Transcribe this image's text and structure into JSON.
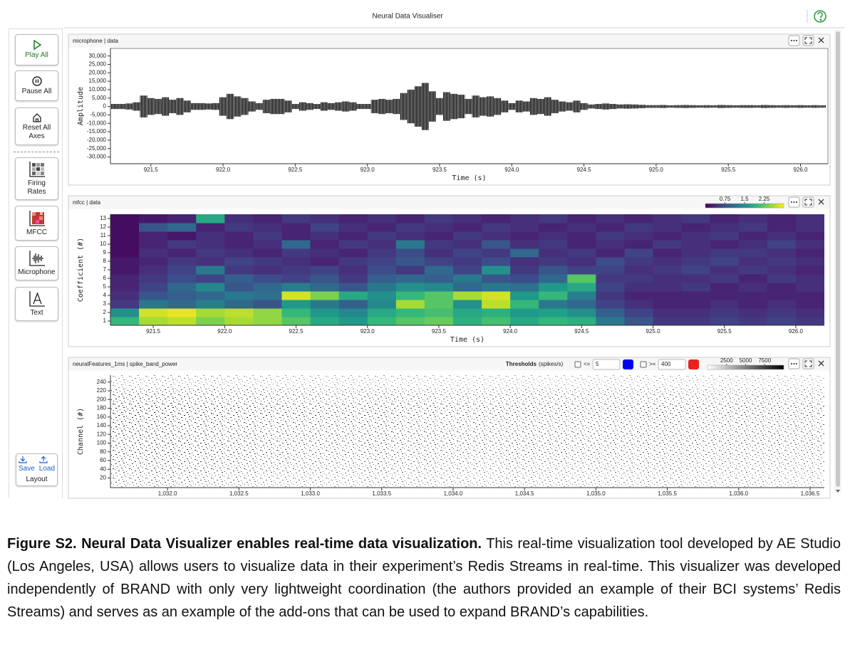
{
  "header": {
    "title": "Neural Data Visualiser"
  },
  "sidebar": {
    "buttons": [
      "Play All",
      "Pause All",
      "Reset All Axes",
      "Firing Rates",
      "MFCC",
      "Microphone",
      "Text"
    ],
    "save": "Save",
    "load": "Load",
    "layout": "Layout"
  },
  "panels": [
    {
      "title": "microphone | data",
      "chart_data": {
        "type": "envelope",
        "x_label": "Time (s)",
        "y_label": "Amplitude",
        "color": "#000000",
        "xlim": [
          921.22,
          926.19
        ],
        "xticks": [
          921.5,
          {
            "value": 922,
            "label": "922.0"
          },
          922.5,
          {
            "value": 923,
            "label": "923.0"
          },
          923.5,
          {
            "value": 924,
            "label": "924.0"
          },
          924.5,
          {
            "value": 925,
            "label": "925.0"
          },
          925.5,
          {
            "value": 926,
            "label": "926.0"
          }
        ],
        "ylim": [
          -34000,
          34500
        ],
        "yticks": [
          {
            "value": 30000,
            "label": "30,000"
          },
          {
            "value": 25000,
            "label": "25,000"
          },
          {
            "value": 20000,
            "label": "20,000"
          },
          {
            "value": 15000,
            "label": "15,000"
          },
          {
            "value": 10000,
            "label": "10,000"
          },
          {
            "value": 5000,
            "label": "5,000"
          },
          0,
          {
            "value": -5000,
            "label": "-5,000"
          },
          {
            "value": -10000,
            "label": "-10,000"
          },
          {
            "value": -15000,
            "label": "-15,000"
          },
          {
            "value": -20000,
            "label": "-20,000"
          },
          {
            "value": -25000,
            "label": "-25,000"
          },
          {
            "value": -30000,
            "label": "-30,000"
          }
        ],
        "x": [
          921.25,
          921.3,
          921.35,
          921.4,
          921.45,
          921.5,
          921.55,
          921.6,
          921.65,
          921.7,
          921.75,
          921.8,
          921.85,
          921.9,
          921.95,
          922,
          922.05,
          922.1,
          922.15,
          922.2,
          922.25,
          922.3,
          922.35,
          922.4,
          922.45,
          922.5,
          922.55,
          922.6,
          922.65,
          922.7,
          922.75,
          922.8,
          922.85,
          922.9,
          922.95,
          923,
          923.05,
          923.1,
          923.15,
          923.2,
          923.25,
          923.3,
          923.35,
          923.4,
          923.45,
          923.5,
          923.55,
          923.6,
          923.65,
          923.7,
          923.75,
          923.8,
          923.85,
          923.9,
          923.95,
          924,
          924.05,
          924.1,
          924.15,
          924.2,
          924.25,
          924.3,
          924.35,
          924.4,
          924.45,
          924.5,
          924.55,
          924.6,
          924.65,
          924.7,
          924.75,
          924.8,
          924.85,
          924.9,
          924.95,
          925,
          925.05,
          925.1,
          925.15,
          925.2,
          925.25,
          925.3,
          925.35,
          925.4,
          925.45,
          925.5,
          925.55,
          925.6,
          925.65,
          925.7,
          925.75,
          925.8,
          925.85,
          925.9,
          925.95,
          926,
          926.05,
          926.1,
          926.15
        ],
        "values": [
          1500,
          1500,
          1800,
          2500,
          6500,
          5000,
          4500,
          5500,
          4000,
          5000,
          3500,
          2000,
          2000,
          1800,
          2000,
          5500,
          7500,
          6000,
          5000,
          3000,
          2000,
          4000,
          4500,
          4500,
          3500,
          1500,
          2500,
          2000,
          1500,
          2500,
          2000,
          2500,
          3000,
          2500,
          1500,
          1500,
          4000,
          4500,
          4000,
          4500,
          8000,
          10000,
          12000,
          14000,
          9000,
          5000,
          8500,
          7500,
          7000,
          4500,
          6500,
          5500,
          6000,
          5000,
          3500,
          2000,
          3500,
          3000,
          5000,
          4500,
          5500,
          4000,
          3000,
          2500,
          3500,
          2000,
          1200,
          1500,
          1800,
          1500,
          1200,
          1300,
          1200,
          1000,
          800,
          800,
          900,
          700,
          800,
          900,
          800,
          700,
          800,
          700,
          900,
          800,
          700,
          800,
          800,
          700,
          900,
          800,
          700,
          800,
          700,
          800,
          700,
          800,
          700
        ]
      }
    },
    {
      "title": "mfcc | data",
      "chart_data": {
        "type": "heatmap",
        "x_label": "Time (s)",
        "y_label": "Coefficient (#)",
        "colormap": "viridis",
        "clim": [
          0,
          3
        ],
        "cticks": [
          0.75,
          1.5,
          2.25
        ],
        "xlim": [
          921.2,
          926.2
        ],
        "xticks": [
          921.5,
          {
            "value": 922,
            "label": "922.0"
          },
          922.5,
          {
            "value": 923,
            "label": "923.0"
          },
          923.5,
          {
            "value": 924,
            "label": "924.0"
          },
          924.5,
          {
            "value": 925,
            "label": "925.0"
          },
          925.5,
          {
            "value": 926,
            "label": "926.0"
          }
        ],
        "ylim": [
          0.5,
          13.5
        ],
        "yticks": [
          1,
          2,
          3,
          4,
          5,
          6,
          7,
          8,
          9,
          10,
          11,
          12,
          13
        ],
        "x_bins": [
          921.2,
          921.4,
          921.6,
          921.8,
          922,
          922.2,
          922.4,
          922.6,
          922.8,
          923,
          923.2,
          923.4,
          923.6,
          923.8,
          924,
          924.2,
          924.4,
          924.6,
          924.8,
          925,
          925.2,
          925.4,
          925.6,
          925.8,
          926,
          926.2
        ],
        "y_bins": [
          0.5,
          1.5,
          2.5,
          3.5,
          4.5,
          5.5,
          6.5,
          7.5,
          8.5,
          9.5,
          10.5,
          11.5,
          12.5,
          13.5
        ],
        "values": [
          [
            2.0,
            2.6,
            2.7,
            2.4,
            2.6,
            2.5,
            2.2,
            1.8,
            1.6,
            2.0,
            2.2,
            2.3,
            1.9,
            2.1,
            1.8,
            2.0,
            1.9,
            1.2,
            0.8,
            0.5,
            0.5,
            0.6,
            0.5,
            0.6,
            0.5
          ],
          [
            1.5,
            2.8,
            2.9,
            2.6,
            2.7,
            2.5,
            2.0,
            1.6,
            1.4,
            1.8,
            2.0,
            2.1,
            1.8,
            1.9,
            1.6,
            1.7,
            1.5,
            0.9,
            0.6,
            0.4,
            0.4,
            0.5,
            0.4,
            0.5,
            0.4
          ],
          [
            0.5,
            1.2,
            1.0,
            1.3,
            1.0,
            0.8,
            1.6,
            1.2,
            0.9,
            1.4,
            2.6,
            2.2,
            1.5,
            2.7,
            2.0,
            1.2,
            1.0,
            0.6,
            0.4,
            0.3,
            0.3,
            0.4,
            0.3,
            0.4,
            0.3
          ],
          [
            0.4,
            0.8,
            0.9,
            1.0,
            1.2,
            1.1,
            2.8,
            2.4,
            1.8,
            1.5,
            2.0,
            2.2,
            2.6,
            2.8,
            1.6,
            2.0,
            1.3,
            0.5,
            0.3,
            0.3,
            0.3,
            0.3,
            0.3,
            0.3,
            0.3
          ],
          [
            0.3,
            0.6,
            1.0,
            1.4,
            0.8,
            1.0,
            1.3,
            1.0,
            0.8,
            1.2,
            1.5,
            1.4,
            1.0,
            1.2,
            1.1,
            1.6,
            1.8,
            0.6,
            0.4,
            0.4,
            0.5,
            0.3,
            0.4,
            0.3,
            0.4
          ],
          [
            0.3,
            0.5,
            0.7,
            0.6,
            0.9,
            0.7,
            0.6,
            0.8,
            0.5,
            0.9,
            1.0,
            0.9,
            1.2,
            0.8,
            0.7,
            1.0,
            2.2,
            0.5,
            0.5,
            0.4,
            0.4,
            0.5,
            0.3,
            0.5,
            0.4
          ],
          [
            0.2,
            0.4,
            0.6,
            1.2,
            0.5,
            0.4,
            0.5,
            0.6,
            0.4,
            0.7,
            0.5,
            1.0,
            0.6,
            1.5,
            0.5,
            0.8,
            0.6,
            0.6,
            0.4,
            0.5,
            0.6,
            0.4,
            0.5,
            0.4,
            0.3
          ],
          [
            0.2,
            0.3,
            0.5,
            0.4,
            0.6,
            0.5,
            0.4,
            0.3,
            0.5,
            0.6,
            0.8,
            0.6,
            0.5,
            0.7,
            0.4,
            0.5,
            0.4,
            0.7,
            0.5,
            0.4,
            0.5,
            0.6,
            0.4,
            0.5,
            0.4
          ],
          [
            0.1,
            0.4,
            0.3,
            0.5,
            0.4,
            0.3,
            0.5,
            0.4,
            0.3,
            0.5,
            0.7,
            0.4,
            0.6,
            0.5,
            1.0,
            0.4,
            0.5,
            0.3,
            0.6,
            0.3,
            0.4,
            0.5,
            0.5,
            0.4,
            0.3
          ],
          [
            0.1,
            0.3,
            0.5,
            0.4,
            0.3,
            0.4,
            1.0,
            0.3,
            0.5,
            0.4,
            1.2,
            0.5,
            0.4,
            0.8,
            0.4,
            0.5,
            0.3,
            0.4,
            0.3,
            0.5,
            0.4,
            0.3,
            0.4,
            0.6,
            0.4
          ],
          [
            0.1,
            0.3,
            0.2,
            0.4,
            0.3,
            0.5,
            0.3,
            0.4,
            0.3,
            0.5,
            0.4,
            0.3,
            0.5,
            0.4,
            0.3,
            0.4,
            0.3,
            0.5,
            0.4,
            0.3,
            0.4,
            0.5,
            0.3,
            0.4,
            0.3
          ],
          [
            0.1,
            0.8,
            1.0,
            0.3,
            0.5,
            0.4,
            0.3,
            0.6,
            0.4,
            0.3,
            0.5,
            0.4,
            0.3,
            0.5,
            0.4,
            0.3,
            0.4,
            0.3,
            0.5,
            0.4,
            0.3,
            0.4,
            0.5,
            0.3,
            0.4
          ],
          [
            0.1,
            0.2,
            0.3,
            1.8,
            0.4,
            0.3,
            0.5,
            0.4,
            0.3,
            0.4,
            0.3,
            0.5,
            0.4,
            0.3,
            0.4,
            0.5,
            0.3,
            0.4,
            0.3,
            0.4,
            0.5,
            0.3,
            0.4,
            0.3,
            0.4
          ]
        ]
      }
    },
    {
      "title": "neuralFeatures_1ms | spike_band_power",
      "thresholds": {
        "label": "Thresholds",
        "unit": "(spikes/s)",
        "low_op": "<=",
        "low": 5,
        "low_color": "#0000ee",
        "high_op": ">=",
        "high": 400,
        "high_color": "#e8231d"
      },
      "chart_data": {
        "type": "raster",
        "y_label": "Channel (#)",
        "colormap": "greys",
        "clim": [
          0,
          10000
        ],
        "cticks": [
          2500,
          5000,
          7500
        ],
        "xlim": [
          1031.6,
          1036.6
        ],
        "xticks": [
          {
            "value": 1032,
            "label": "1,032.0"
          },
          {
            "value": 1032.5,
            "label": "1,032.5"
          },
          {
            "value": 1033,
            "label": "1,033.0"
          },
          {
            "value": 1033.5,
            "label": "1,033.5"
          },
          {
            "value": 1034,
            "label": "1,034.0"
          },
          {
            "value": 1034.5,
            "label": "1,034.5"
          },
          {
            "value": 1035,
            "label": "1,035.0"
          },
          {
            "value": 1035.5,
            "label": "1,035.5"
          },
          {
            "value": 1036,
            "label": "1,036.0"
          },
          {
            "value": 1036.5,
            "label": "1,036.5"
          }
        ],
        "ylim": [
          -2,
          256
        ],
        "yticks": [
          20,
          40,
          60,
          80,
          100,
          120,
          140,
          160,
          180,
          200,
          220,
          240
        ],
        "x_bins": [
          1031.6,
          1031.85,
          1032.1,
          1032.35,
          1032.6,
          1032.85,
          1033.1,
          1033.35,
          1033.6,
          1033.85,
          1034.1,
          1034.35,
          1034.6,
          1034.85,
          1035.1,
          1035.35,
          1035.6,
          1035.85,
          1036.1,
          1036.35,
          1036.6
        ],
        "y_bins": [
          0,
          32,
          64,
          96,
          128,
          160,
          192,
          224,
          256
        ],
        "values": [
          [
            3000,
            3200,
            3000,
            2800,
            2600,
            2500,
            2400,
            2600,
            2500,
            2400,
            2300,
            2500,
            2400,
            2300,
            2400,
            2500,
            2300,
            2400,
            2300,
            2200
          ],
          [
            3500,
            3600,
            3400,
            3200,
            3000,
            2900,
            2800,
            3000,
            2900,
            2700,
            2600,
            2800,
            2700,
            2600,
            2700,
            2800,
            2600,
            2700,
            2600,
            2500
          ],
          [
            3800,
            3900,
            3700,
            3500,
            3300,
            3200,
            3100,
            3300,
            3100,
            3000,
            2900,
            3100,
            3000,
            2900,
            3000,
            3100,
            2900,
            3000,
            2900,
            2800
          ],
          [
            4000,
            4100,
            3900,
            3700,
            3500,
            3400,
            3300,
            3500,
            3300,
            3200,
            3100,
            3300,
            3200,
            3100,
            3200,
            3300,
            3100,
            3200,
            3100,
            3000
          ],
          [
            3900,
            4000,
            3800,
            3600,
            3400,
            3300,
            3200,
            3400,
            3200,
            3100,
            3000,
            3200,
            3100,
            3000,
            3100,
            3200,
            3000,
            3100,
            3000,
            2900
          ],
          [
            4200,
            4300,
            4100,
            3900,
            3700,
            3600,
            3500,
            3700,
            3500,
            3400,
            3300,
            3500,
            3400,
            3300,
            3400,
            3500,
            3300,
            3400,
            3300,
            3200
          ],
          [
            3600,
            3700,
            3500,
            3300,
            3100,
            3000,
            2900,
            3100,
            2900,
            2800,
            2700,
            2900,
            2800,
            2700,
            2800,
            2900,
            2700,
            2800,
            2700,
            2600
          ],
          [
            2200,
            2300,
            2100,
            2000,
            1900,
            1800,
            1800,
            1900,
            1800,
            1700,
            1700,
            1800,
            1700,
            1700,
            1800,
            1800,
            1700,
            1800,
            1700,
            1600
          ]
        ]
      }
    }
  ],
  "caption": {
    "bold": "Figure S2. Neural Data Visualizer enables real-time data visualization.",
    "text": "This real-time visualization tool developed by AE Studio (Los Angeles, USA) allows users to visualize data in their experiment’s Redis Streams in real-time. This visualizer was developed independently of BRAND with only very lightweight coordination (the authors provided an example of their BCI systems’ Redis Streams) and serves as an example of the add-ons that can be used to expand BRAND’s capabilities."
  }
}
